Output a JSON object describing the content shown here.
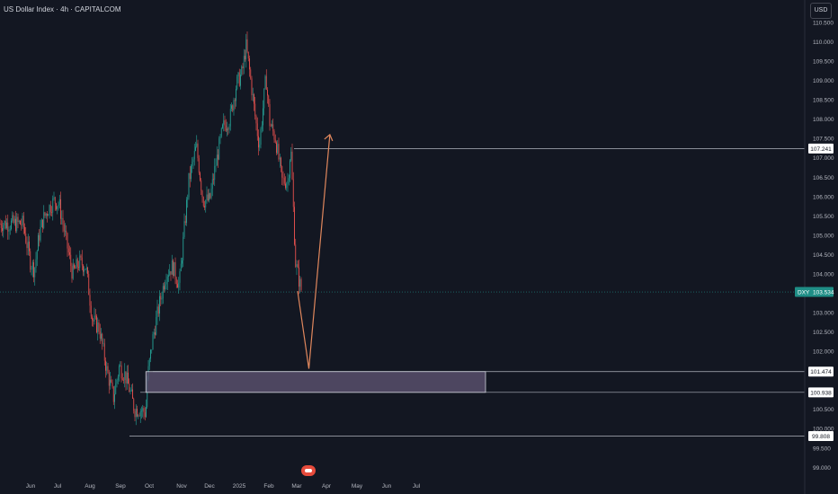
{
  "header": {
    "title": "US Dollar Index · 4h · CAPITALCOM",
    "currency_button": "USD"
  },
  "logo_icon": "tradingview-logo-icon",
  "colors": {
    "background": "#131722",
    "up": "#26a69a",
    "down": "#ef5350",
    "zone_fill": "#5d5370",
    "projection": "#e0875d",
    "current_badge": "#1f8e86"
  },
  "chart_data": {
    "type": "candlestick",
    "title": "US Dollar Index · 4h · CAPITALCOM",
    "y_range": [
      98.9,
      110.9
    ],
    "y_ticks": [
      "110.500",
      "110.000",
      "109.500",
      "109.000",
      "108.500",
      "108.000",
      "107.500",
      "107.000",
      "106.500",
      "106.000",
      "105.500",
      "105.000",
      "104.500",
      "104.000",
      "103.000",
      "102.500",
      "102.000",
      "100.500",
      "100.000",
      "99.500",
      "99.000"
    ],
    "x_ticks": [
      "Jun",
      "Jul",
      "Aug",
      "Sep",
      "Oct",
      "Nov",
      "Dec",
      "2025",
      "Feb",
      "Mar",
      "Apr",
      "May",
      "Jun",
      "Jul"
    ],
    "price_path": [
      {
        "x": "2024-05-24",
        "price": 105.3
      },
      {
        "x": "2024-06-01",
        "price": 104.3
      },
      {
        "x": "2024-06-05",
        "price": 104.1
      },
      {
        "x": "2024-06-10",
        "price": 105.0
      },
      {
        "x": "2024-06-14",
        "price": 105.4
      },
      {
        "x": "2024-06-20",
        "price": 105.7
      },
      {
        "x": "2024-06-26",
        "price": 105.9
      },
      {
        "x": "2024-07-01",
        "price": 105.8
      },
      {
        "x": "2024-07-08",
        "price": 104.9
      },
      {
        "x": "2024-07-15",
        "price": 104.0
      },
      {
        "x": "2024-07-22",
        "price": 104.3
      },
      {
        "x": "2024-07-29",
        "price": 104.2
      },
      {
        "x": "2024-08-05",
        "price": 102.8
      },
      {
        "x": "2024-08-12",
        "price": 102.6
      },
      {
        "x": "2024-08-20",
        "price": 101.5
      },
      {
        "x": "2024-08-27",
        "price": 100.8
      },
      {
        "x": "2024-09-02",
        "price": 101.6
      },
      {
        "x": "2024-09-08",
        "price": 101.4
      },
      {
        "x": "2024-09-13",
        "price": 101.0
      },
      {
        "x": "2024-09-18",
        "price": 100.5
      },
      {
        "x": "2024-09-24",
        "price": 100.5
      },
      {
        "x": "2024-09-30",
        "price": 100.4
      },
      {
        "x": "2024-10-01",
        "price": 101.2
      },
      {
        "x": "2024-10-07",
        "price": 102.3
      },
      {
        "x": "2024-10-14",
        "price": 103.2
      },
      {
        "x": "2024-10-21",
        "price": 104.0
      },
      {
        "x": "2024-10-28",
        "price": 104.2
      },
      {
        "x": "2024-11-04",
        "price": 103.7
      },
      {
        "x": "2024-11-08",
        "price": 104.8
      },
      {
        "x": "2024-11-14",
        "price": 106.4
      },
      {
        "x": "2024-11-22",
        "price": 107.3
      },
      {
        "x": "2024-11-29",
        "price": 105.9
      },
      {
        "x": "2024-12-06",
        "price": 105.9
      },
      {
        "x": "2024-12-12",
        "price": 106.8
      },
      {
        "x": "2024-12-20",
        "price": 107.8
      },
      {
        "x": "2024-12-27",
        "price": 108.0
      },
      {
        "x": "2025-01-03",
        "price": 108.9
      },
      {
        "x": "2025-01-09",
        "price": 109.2
      },
      {
        "x": "2025-01-13",
        "price": 109.9
      },
      {
        "x": "2025-01-17",
        "price": 109.2
      },
      {
        "x": "2025-01-23",
        "price": 108.0
      },
      {
        "x": "2025-01-27",
        "price": 107.3
      },
      {
        "x": "2025-02-03",
        "price": 109.1
      },
      {
        "x": "2025-02-07",
        "price": 107.9
      },
      {
        "x": "2025-02-13",
        "price": 107.5
      },
      {
        "x": "2025-02-20",
        "price": 106.4
      },
      {
        "x": "2025-02-26",
        "price": 106.4
      },
      {
        "x": "2025-03-01",
        "price": 107.3
      },
      {
        "x": "2025-03-06",
        "price": 104.3
      },
      {
        "x": "2025-03-10",
        "price": 103.8
      },
      {
        "x": "2025-03-13",
        "price": 103.5
      }
    ],
    "levels": [
      {
        "label": "107.241",
        "price": 107.241
      },
      {
        "label": "101.474",
        "price": 101.474
      },
      {
        "label": "100.938",
        "price": 100.938
      },
      {
        "label": "99.808",
        "price": 99.808
      }
    ],
    "current_price": {
      "symbol": "DXY",
      "value": "103.534",
      "price": 103.534
    },
    "demand_zone": {
      "top": 101.474,
      "bottom": 100.938,
      "from": "2024-09-30",
      "to": "2025-07-03"
    },
    "projection": [
      {
        "x": "2025-03-20",
        "price": 101.55
      },
      {
        "x": "2025-04-11",
        "price": 107.6
      }
    ]
  }
}
